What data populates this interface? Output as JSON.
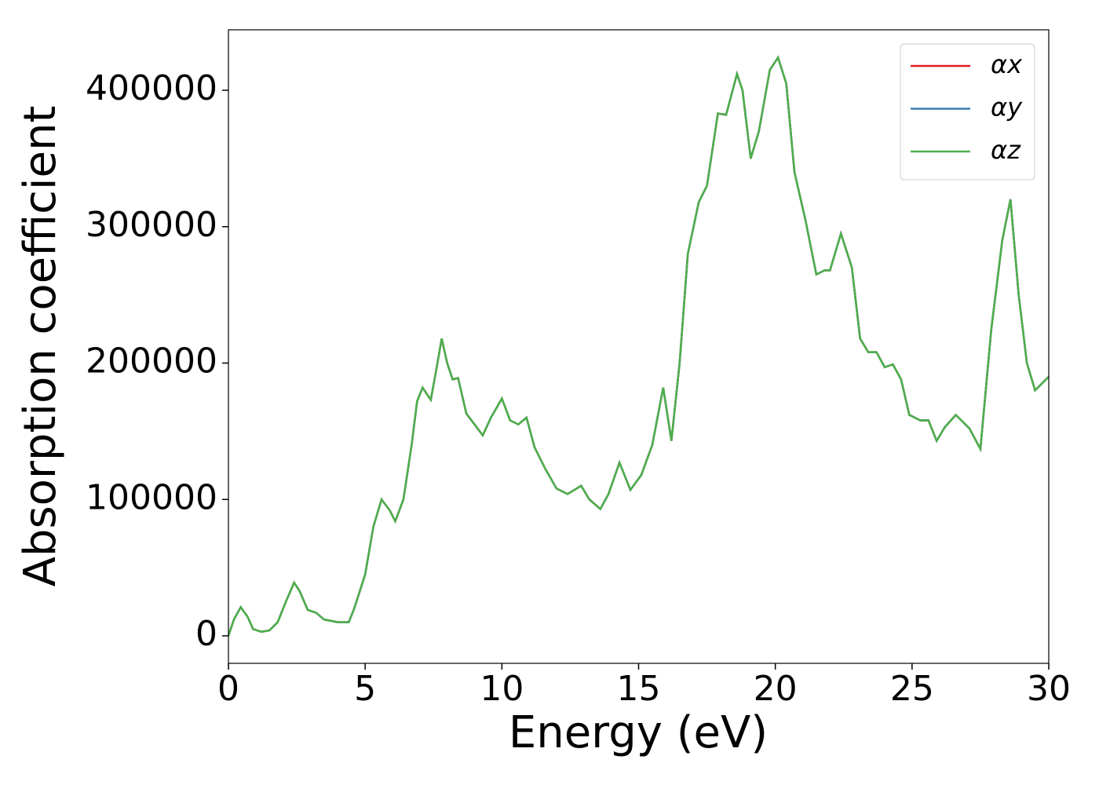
{
  "chart_data": {
    "type": "line",
    "x_label": "Energy (eV)",
    "y_label": "Absorption coefficient",
    "x": [
      0,
      0.2,
      0.45,
      0.7,
      0.9,
      1.2,
      1.5,
      1.8,
      2.1,
      2.4,
      2.6,
      2.9,
      3.2,
      3.5,
      4.0,
      4.4,
      4.6,
      5.0,
      5.3,
      5.6,
      5.9,
      6.1,
      6.4,
      6.7,
      6.9,
      7.1,
      7.4,
      7.6,
      7.8,
      8.0,
      8.2,
      8.4,
      8.7,
      9.0,
      9.3,
      9.6,
      10.0,
      10.3,
      10.6,
      10.9,
      11.2,
      11.6,
      12.0,
      12.4,
      12.9,
      13.2,
      13.6,
      13.9,
      14.3,
      14.7,
      15.1,
      15.5,
      15.9,
      16.2,
      16.5,
      16.8,
      17.2,
      17.5,
      17.9,
      18.2,
      18.6,
      18.8,
      19.1,
      19.4,
      19.8,
      20.1,
      20.4,
      20.7,
      21.1,
      21.5,
      21.8,
      22.0,
      22.4,
      22.8,
      23.1,
      23.4,
      23.7,
      24.0,
      24.3,
      24.6,
      24.9,
      25.3,
      25.6,
      25.9,
      26.2,
      26.6,
      27.1,
      27.5,
      27.9,
      28.3,
      28.6,
      28.9,
      29.2,
      29.5,
      30.0
    ],
    "series": [
      {
        "name": "αx",
        "color": "#e41a1c",
        "values": [
          0,
          12000,
          21000,
          14000,
          5000,
          3000,
          4000,
          10000,
          25000,
          39000,
          33000,
          19000,
          17000,
          12000,
          10000,
          10000,
          20000,
          45000,
          80000,
          100000,
          92000,
          84000,
          100000,
          140000,
          172000,
          182000,
          173000,
          195000,
          218000,
          200000,
          188000,
          189000,
          163000,
          155000,
          147000,
          160000,
          174000,
          158000,
          155000,
          160000,
          138000,
          122000,
          108000,
          104000,
          110000,
          100000,
          93000,
          104000,
          127000,
          107000,
          118000,
          140000,
          182000,
          143000,
          200000,
          280000,
          318000,
          330000,
          383000,
          382000,
          412000,
          400000,
          350000,
          370000,
          415000,
          424000,
          405000,
          340000,
          305000,
          265000,
          268000,
          268000,
          295000,
          270000,
          218000,
          208000,
          208000,
          197000,
          199000,
          188000,
          162000,
          158000,
          158000,
          143000,
          153000,
          162000,
          152000,
          137000,
          225000,
          290000,
          320000,
          250000,
          200000,
          180000,
          190000
        ]
      },
      {
        "name": "αy",
        "color": "#377eb8",
        "values": [
          0,
          12000,
          21000,
          14000,
          5000,
          3000,
          4000,
          10000,
          25000,
          39000,
          33000,
          19000,
          17000,
          12000,
          10000,
          10000,
          20000,
          45000,
          80000,
          100000,
          92000,
          84000,
          100000,
          140000,
          172000,
          182000,
          173000,
          195000,
          218000,
          200000,
          188000,
          189000,
          163000,
          155000,
          147000,
          160000,
          174000,
          158000,
          155000,
          160000,
          138000,
          122000,
          108000,
          104000,
          110000,
          100000,
          93000,
          104000,
          127000,
          107000,
          118000,
          140000,
          182000,
          143000,
          200000,
          280000,
          318000,
          330000,
          383000,
          382000,
          412000,
          400000,
          350000,
          370000,
          415000,
          424000,
          405000,
          340000,
          305000,
          265000,
          268000,
          268000,
          295000,
          270000,
          218000,
          208000,
          208000,
          197000,
          199000,
          188000,
          162000,
          158000,
          158000,
          143000,
          153000,
          162000,
          152000,
          137000,
          225000,
          290000,
          320000,
          250000,
          200000,
          180000,
          190000
        ]
      },
      {
        "name": "αz",
        "color": "#4daf4a",
        "values": [
          0,
          12000,
          21000,
          14000,
          5000,
          3000,
          4000,
          10000,
          25000,
          39000,
          33000,
          19000,
          17000,
          12000,
          10000,
          10000,
          20000,
          45000,
          80000,
          100000,
          92000,
          84000,
          100000,
          140000,
          172000,
          182000,
          173000,
          195000,
          218000,
          200000,
          188000,
          189000,
          163000,
          155000,
          147000,
          160000,
          174000,
          158000,
          155000,
          160000,
          138000,
          122000,
          108000,
          104000,
          110000,
          100000,
          93000,
          104000,
          127000,
          107000,
          118000,
          140000,
          182000,
          143000,
          200000,
          280000,
          318000,
          330000,
          383000,
          382000,
          412000,
          400000,
          350000,
          370000,
          415000,
          424000,
          405000,
          340000,
          305000,
          265000,
          268000,
          268000,
          295000,
          270000,
          218000,
          208000,
          208000,
          197000,
          199000,
          188000,
          162000,
          158000,
          158000,
          143000,
          153000,
          162000,
          152000,
          137000,
          225000,
          290000,
          320000,
          250000,
          200000,
          180000,
          190000
        ]
      }
    ],
    "xlim": [
      0,
      30
    ],
    "xticks": [
      0,
      5,
      10,
      15,
      20,
      25,
      30
    ],
    "ylim": [
      -20144,
      444317
    ],
    "yticks": [
      0,
      100000,
      200000,
      300000,
      400000
    ],
    "legend": "upper right",
    "grid": false
  }
}
